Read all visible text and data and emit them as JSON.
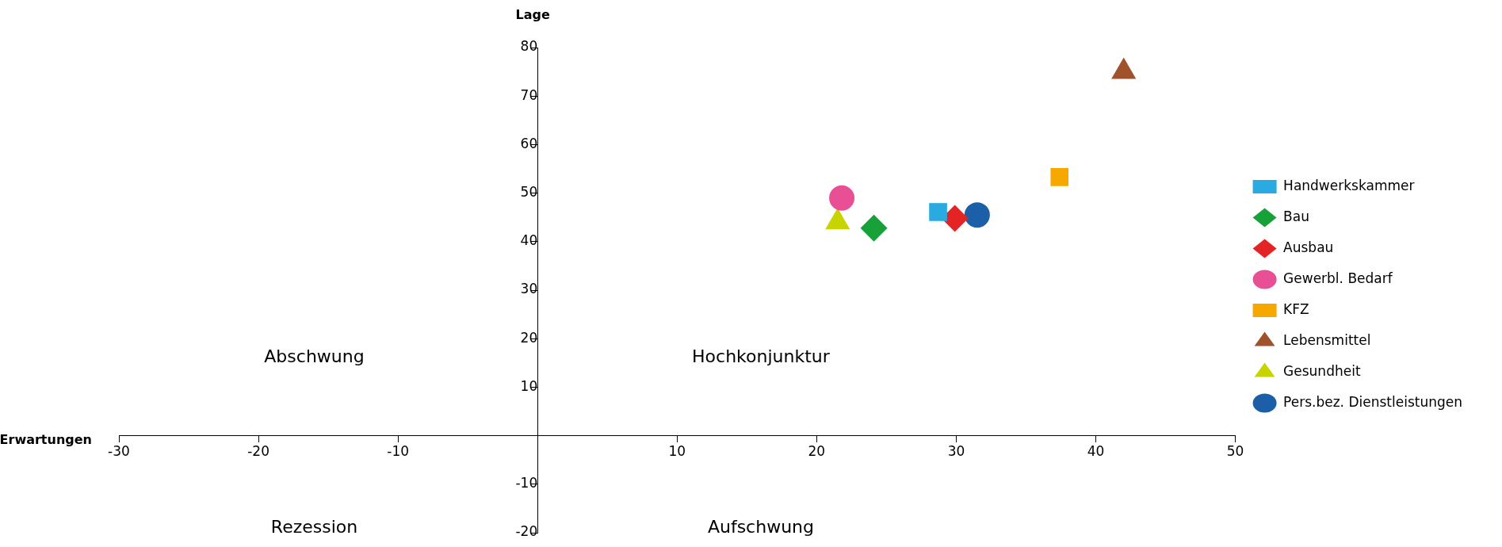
{
  "chart_data": {
    "type": "scatter",
    "xlabel": "Erwartungen",
    "ylabel": "Lage",
    "xlim": [
      -30,
      50
    ],
    "xticks": [
      -30,
      -20,
      -10,
      {
        "value": 0,
        "label": null
      },
      10,
      20,
      30,
      40,
      50
    ],
    "ylim": [
      -20,
      80
    ],
    "yticks": [
      -20,
      -10,
      {
        "value": 0,
        "label": null
      },
      10,
      20,
      30,
      40,
      50,
      60,
      70,
      80
    ],
    "grid": false,
    "legend": "right",
    "annotations": [
      "Abschwung",
      "Hochkonjunktur",
      "Rezession",
      "Aufschwung"
    ],
    "series": [
      {
        "name": "Handwerkskammer",
        "color": "#29abe2",
        "marker": "square",
        "x": [
          28.7
        ],
        "values": [
          46.1
        ]
      },
      {
        "name": "Bau",
        "color": "#17a239",
        "marker": "diamond",
        "x": [
          24.1
        ],
        "values": [
          42.8
        ]
      },
      {
        "name": "Ausbau",
        "color": "#e42424",
        "marker": "diamond",
        "x": [
          29.9
        ],
        "values": [
          44.8
        ]
      },
      {
        "name": "Gewerbl. Bedarf",
        "color": "#e94f94",
        "marker": "circle",
        "x": [
          21.8
        ],
        "values": [
          49.0
        ]
      },
      {
        "name": "KFZ",
        "color": "#f6a800",
        "marker": "square",
        "x": [
          37.4
        ],
        "values": [
          53.3
        ]
      },
      {
        "name": "Lebensmittel",
        "color": "#a0522d",
        "marker": "triangle",
        "x": [
          42.0
        ],
        "values": [
          75.0
        ]
      },
      {
        "name": "Gesundheit",
        "color": "#c8d400",
        "marker": "triangle",
        "x": [
          21.5
        ],
        "values": [
          44.0
        ]
      },
      {
        "name": "Pers.bez. Dienstleistungen",
        "color": "#1b5fa8",
        "marker": "circle",
        "x": [
          31.5
        ],
        "values": [
          45.5
        ]
      }
    ]
  }
}
